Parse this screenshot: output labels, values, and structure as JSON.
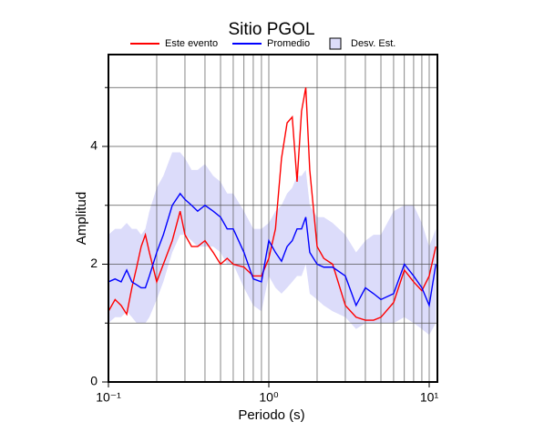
{
  "chart_data": {
    "type": "line",
    "title": "Sitio PGOL",
    "x_label": "Periodo (s)",
    "y_label": "Amplitud",
    "x": [
      0.1,
      0.11,
      0.12,
      0.13,
      0.14,
      0.15,
      0.16,
      0.17,
      0.18,
      0.2,
      0.22,
      0.25,
      0.28,
      0.3,
      0.33,
      0.36,
      0.4,
      0.45,
      0.5,
      0.55,
      0.6,
      0.7,
      0.8,
      0.9,
      1.0,
      1.1,
      1.2,
      1.3,
      1.4,
      1.5,
      1.6,
      1.7,
      1.8,
      2.0,
      2.2,
      2.5,
      3,
      3.5,
      4,
      4.5,
      5,
      6,
      7,
      8,
      9,
      10,
      11
    ],
    "series": [
      {
        "name": "Este evento",
        "color": "#ff0000",
        "values": [
          1.2,
          1.4,
          1.3,
          1.15,
          1.6,
          1.95,
          2.3,
          2.5,
          2.2,
          1.7,
          2.0,
          2.4,
          2.9,
          2.5,
          2.3,
          2.3,
          2.4,
          2.2,
          2.0,
          2.1,
          2.0,
          1.95,
          1.8,
          1.8,
          2.1,
          2.6,
          3.8,
          4.4,
          4.5,
          3.4,
          4.6,
          5.0,
          3.6,
          2.3,
          2.1,
          2.0,
          1.3,
          1.1,
          1.05,
          1.05,
          1.1,
          1.35,
          1.9,
          1.7,
          1.55,
          1.8,
          2.3
        ]
      },
      {
        "name": "Promedio",
        "color": "#0000ff",
        "values": [
          1.7,
          1.75,
          1.7,
          1.9,
          1.7,
          1.65,
          1.6,
          1.6,
          1.8,
          2.2,
          2.5,
          3.0,
          3.2,
          3.1,
          3.0,
          2.9,
          3.0,
          2.9,
          2.8,
          2.6,
          2.6,
          2.2,
          1.75,
          1.7,
          2.4,
          2.2,
          2.05,
          2.3,
          2.4,
          2.6,
          2.6,
          2.8,
          2.2,
          2.0,
          1.95,
          1.95,
          1.8,
          1.3,
          1.6,
          1.5,
          1.4,
          1.5,
          2.0,
          1.8,
          1.6,
          1.3,
          2.0
        ]
      },
      {
        "name": "Desv. Est.",
        "color": "#dcdcfa",
        "upper": [
          2.5,
          2.6,
          2.6,
          2.7,
          2.6,
          2.6,
          2.5,
          2.6,
          2.9,
          3.3,
          3.5,
          3.9,
          3.9,
          3.8,
          3.6,
          3.6,
          3.7,
          3.5,
          3.4,
          3.2,
          3.2,
          2.9,
          2.6,
          2.6,
          2.7,
          2.9,
          3.0,
          3.2,
          3.3,
          3.5,
          3.5,
          3.6,
          3.0,
          2.8,
          2.8,
          2.7,
          2.5,
          2.2,
          2.4,
          2.5,
          2.5,
          2.9,
          3.0,
          3.0,
          2.7,
          2.3,
          2.6
        ],
        "lower": [
          1.0,
          1.1,
          1.1,
          1.2,
          1.1,
          1.0,
          1.0,
          1.0,
          1.1,
          1.4,
          1.7,
          2.2,
          2.5,
          2.5,
          2.4,
          2.3,
          2.3,
          2.3,
          2.2,
          2.0,
          2.0,
          1.6,
          1.3,
          1.2,
          1.8,
          1.6,
          1.5,
          1.6,
          1.7,
          1.8,
          1.8,
          2.0,
          1.5,
          1.4,
          1.3,
          1.2,
          1.1,
          0.9,
          1.0,
          1.0,
          1.0,
          1.0,
          1.1,
          1.0,
          0.9,
          0.8,
          1.0
        ]
      }
    ],
    "xscale": "log",
    "xlim": [
      0.1,
      11.25
    ],
    "ylim": [
      0,
      5.56
    ],
    "xticks": [
      {
        "value": 0.1,
        "label": "10⁻¹"
      },
      {
        "value": 1,
        "label": "10⁰"
      },
      {
        "value": 10,
        "label": "10¹"
      }
    ],
    "xgrid": [
      0.2,
      0.3,
      0.4,
      0.5,
      0.6,
      0.7,
      0.8,
      0.9,
      2,
      3,
      4,
      5,
      6,
      7,
      8,
      9
    ],
    "yticks": [
      0,
      2,
      4
    ],
    "ygrid": [
      1,
      3,
      5
    ],
    "grid": true
  }
}
